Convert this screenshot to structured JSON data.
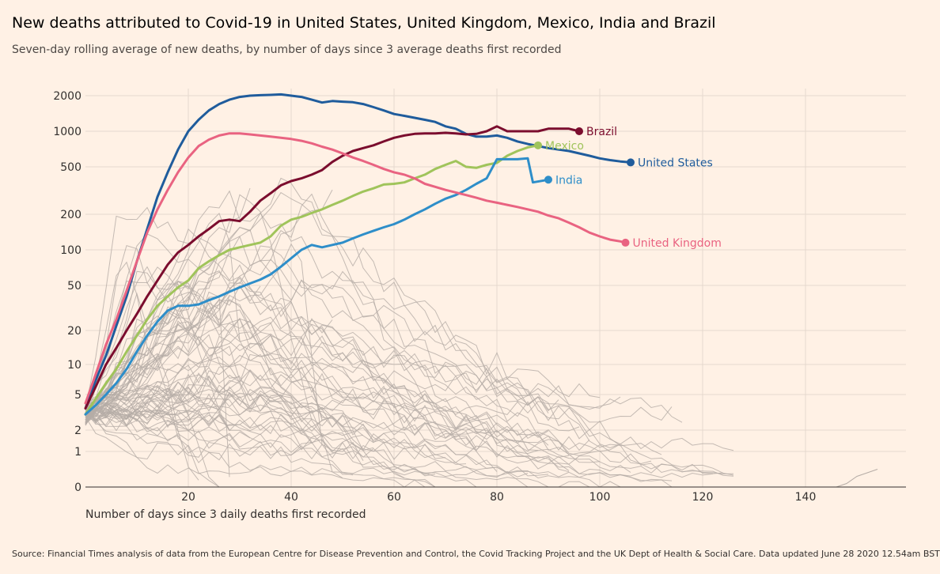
{
  "title": "New deaths attributed to Covid-19 in United States, United Kingdom, Mexico, India and Brazil",
  "subtitle": "Seven-day rolling average of new deaths, by number of days since 3 average deaths first recorded",
  "source": "Source: Financial Times analysis of data from the European Centre for Disease Prevention and Control, the Covid Tracking Project and the UK Dept of Health & Social Care. Data updated June 28 2020 12.54am BST",
  "chart_data": {
    "type": "line",
    "title": "New deaths attributed to Covid-19 in United States, United Kingdom, Mexico, India and Brazil",
    "xlabel": "Number of days since 3 daily deaths first recorded",
    "ylabel": "",
    "y_scale": "log",
    "xlim": [
      0,
      160
    ],
    "ylim": [
      0,
      2000
    ],
    "x_ticks": [
      20,
      40,
      60,
      80,
      100,
      120,
      140
    ],
    "y_ticks": [
      0,
      1,
      2,
      5,
      10,
      20,
      50,
      100,
      200,
      500,
      1000,
      2000
    ],
    "grid": true,
    "legend": "direct labels at line ends",
    "series": [
      {
        "name": "United States",
        "color": "#1f5c9c",
        "x": [
          0,
          2,
          4,
          6,
          8,
          10,
          12,
          14,
          16,
          18,
          20,
          22,
          24,
          26,
          28,
          30,
          32,
          34,
          36,
          38,
          40,
          42,
          44,
          46,
          48,
          50,
          52,
          54,
          56,
          58,
          60,
          62,
          64,
          66,
          68,
          70,
          72,
          74,
          76,
          78,
          80,
          82,
          84,
          86,
          88,
          90,
          92,
          94,
          96,
          98,
          100,
          102,
          104,
          106
        ],
        "y": [
          3.5,
          7,
          12,
          22,
          40,
          80,
          150,
          280,
          450,
          700,
          1000,
          1250,
          1500,
          1700,
          1850,
          1950,
          2000,
          2020,
          2030,
          2050,
          2000,
          1950,
          1850,
          1750,
          1800,
          1780,
          1760,
          1700,
          1600,
          1500,
          1400,
          1350,
          1300,
          1250,
          1200,
          1100,
          1050,
          950,
          900,
          900,
          920,
          880,
          820,
          780,
          750,
          720,
          700,
          680,
          650,
          620,
          590,
          570,
          555,
          545
        ]
      },
      {
        "name": "Brazil",
        "color": "#7b0d2e",
        "x": [
          0,
          2,
          4,
          6,
          8,
          10,
          12,
          14,
          16,
          18,
          20,
          22,
          24,
          26,
          28,
          30,
          32,
          34,
          36,
          38,
          40,
          42,
          44,
          46,
          48,
          50,
          52,
          54,
          56,
          58,
          60,
          62,
          64,
          66,
          68,
          70,
          72,
          74,
          76,
          78,
          80,
          82,
          84,
          86,
          88,
          90,
          92,
          94,
          96
        ],
        "y": [
          3.5,
          6,
          10,
          14,
          20,
          28,
          40,
          55,
          75,
          95,
          110,
          130,
          150,
          175,
          180,
          175,
          210,
          260,
          300,
          350,
          380,
          400,
          430,
          470,
          550,
          620,
          680,
          720,
          760,
          820,
          880,
          920,
          950,
          960,
          960,
          970,
          960,
          940,
          950,
          1000,
          1100,
          1000,
          1000,
          1000,
          1000,
          1050,
          1050,
          1050,
          1000
        ]
      },
      {
        "name": "Mexico",
        "color": "#a0c45b",
        "x": [
          0,
          2,
          4,
          6,
          8,
          10,
          12,
          14,
          16,
          18,
          20,
          22,
          24,
          26,
          28,
          30,
          32,
          34,
          36,
          38,
          40,
          42,
          44,
          46,
          48,
          50,
          52,
          54,
          56,
          58,
          60,
          62,
          64,
          66,
          68,
          70,
          72,
          74,
          76,
          78,
          80,
          82,
          84,
          86,
          88
        ],
        "y": [
          3,
          4.5,
          6.5,
          9,
          13,
          18,
          25,
          33,
          40,
          48,
          55,
          70,
          80,
          90,
          100,
          105,
          110,
          115,
          130,
          160,
          180,
          190,
          205,
          220,
          240,
          260,
          285,
          310,
          330,
          355,
          360,
          370,
          400,
          430,
          480,
          520,
          560,
          500,
          490,
          520,
          540,
          620,
          680,
          730,
          760
        ]
      },
      {
        "name": "India",
        "color": "#2e8ec9",
        "x": [
          0,
          2,
          4,
          6,
          8,
          10,
          12,
          14,
          16,
          18,
          20,
          22,
          24,
          26,
          28,
          30,
          32,
          34,
          36,
          38,
          40,
          42,
          44,
          46,
          48,
          50,
          52,
          54,
          56,
          58,
          60,
          62,
          64,
          66,
          68,
          70,
          72,
          74,
          76,
          78,
          80,
          82,
          84,
          86,
          87,
          90
        ],
        "y": [
          3,
          3.8,
          5,
          6.5,
          9,
          13,
          18,
          24,
          30,
          33,
          33,
          34,
          37,
          40,
          44,
          48,
          52,
          56,
          62,
          72,
          85,
          100,
          110,
          105,
          110,
          115,
          125,
          135,
          145,
          155,
          165,
          180,
          200,
          220,
          245,
          270,
          290,
          320,
          360,
          400,
          580,
          580,
          580,
          590,
          370,
          390
        ]
      },
      {
        "name": "United Kingdom",
        "color": "#e96381",
        "x": [
          0,
          2,
          4,
          6,
          8,
          10,
          12,
          14,
          16,
          18,
          20,
          22,
          24,
          26,
          28,
          30,
          32,
          34,
          36,
          38,
          40,
          42,
          44,
          46,
          48,
          50,
          52,
          54,
          56,
          58,
          60,
          62,
          64,
          66,
          68,
          70,
          72,
          74,
          76,
          78,
          80,
          82,
          84,
          86,
          88,
          90,
          92,
          94,
          96,
          98,
          100,
          102,
          104,
          105
        ],
        "y": [
          4,
          8,
          15,
          25,
          45,
          80,
          140,
          220,
          320,
          450,
          600,
          750,
          850,
          920,
          960,
          960,
          940,
          920,
          900,
          880,
          860,
          830,
          790,
          740,
          700,
          650,
          600,
          560,
          520,
          480,
          450,
          430,
          400,
          360,
          340,
          320,
          305,
          290,
          275,
          260,
          250,
          240,
          230,
          220,
          210,
          195,
          185,
          170,
          155,
          140,
          130,
          122,
          118,
          115
        ]
      }
    ]
  },
  "labels": {
    "brazil": "Brazil",
    "mexico": "Mexico",
    "united_states": "United States",
    "india": "India",
    "united_kingdom": "United Kingdom"
  },
  "colors": {
    "background": "#fff1e5",
    "grid": "#e6d9ce",
    "axis": "#33302e",
    "other_countries": "#b5aca6"
  }
}
